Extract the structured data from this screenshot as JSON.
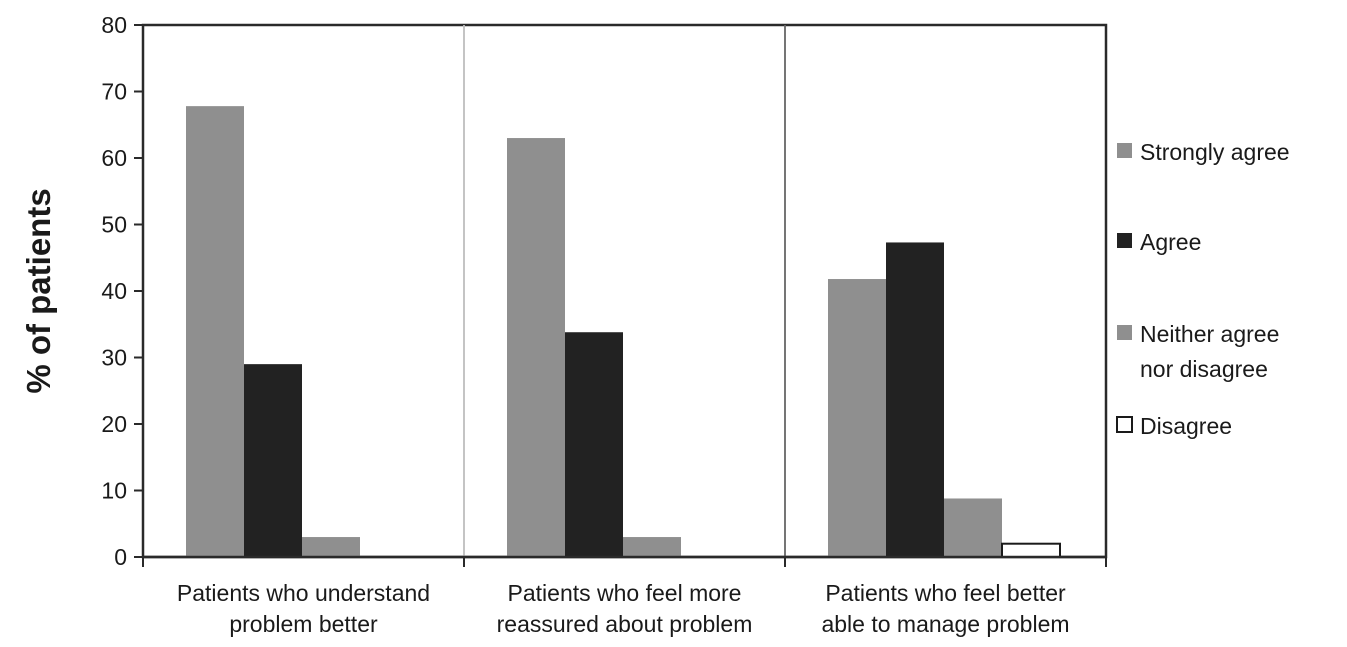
{
  "chart_data": {
    "type": "bar",
    "title": "",
    "xlabel": "",
    "ylabel": "% of patients",
    "ylim": [
      0,
      80
    ],
    "yticks": [
      0,
      10,
      20,
      30,
      40,
      50,
      60,
      70,
      80
    ],
    "grid": false,
    "legend_position": "right",
    "categories": [
      [
        "Patients who understand",
        "problem better"
      ],
      [
        "Patients who feel more",
        "reassured about problem"
      ],
      [
        "Patients who feel better",
        "able to manage problem"
      ]
    ],
    "series": [
      {
        "name": "Strongly agree",
        "legend_lines": [
          "Strongly agree"
        ],
        "color": "#8f8f8f",
        "values": [
          67.8,
          63,
          41.8
        ]
      },
      {
        "name": "Agree",
        "legend_lines": [
          "Agree"
        ],
        "color": "#222222",
        "values": [
          29,
          33.8,
          47.3
        ]
      },
      {
        "name": "Neither agree nor disagree",
        "legend_lines": [
          "Neither agree",
          "nor disagree"
        ],
        "color": "#8f8f8f",
        "values": [
          3,
          3,
          8.8
        ]
      },
      {
        "name": "Disagree",
        "legend_lines": [
          "Disagree"
        ],
        "color": "#ffffff",
        "values": [
          0,
          0,
          2
        ]
      }
    ]
  }
}
